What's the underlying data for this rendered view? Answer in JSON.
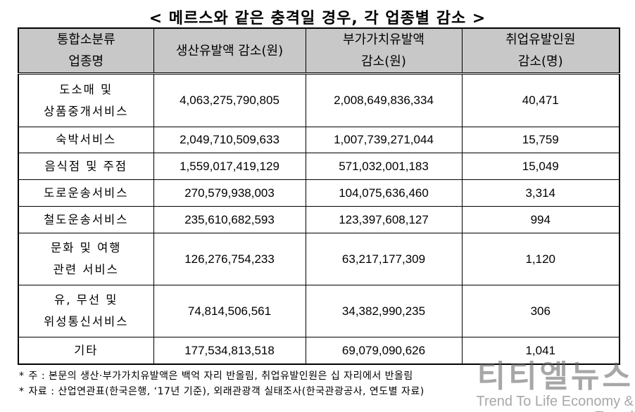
{
  "title": "< 메르스와 같은 충격일 경우, 각 업종별 감소 >",
  "table": {
    "headers": [
      [
        "통합소분류",
        "업종명"
      ],
      [
        "생산유발액 감소(원)"
      ],
      [
        "부가가치유발액",
        "감소(원)"
      ],
      [
        "취업유발인원",
        "감소(명)"
      ]
    ],
    "rows": [
      {
        "industry": [
          "도소매 및",
          "상품중개서비스"
        ],
        "production": "4,063,275,790,805",
        "value_added": "2,008,649,836,334",
        "employment": "40,471"
      },
      {
        "industry": [
          "숙박서비스"
        ],
        "production": "2,049,710,509,633",
        "value_added": "1,007,739,271,044",
        "employment": "15,759"
      },
      {
        "industry": [
          "음식점 및 주점"
        ],
        "production": "1,559,017,419,129",
        "value_added": "571,032,001,183",
        "employment": "15,049"
      },
      {
        "industry": [
          "도로운송서비스"
        ],
        "production": "270,579,938,003",
        "value_added": "104,075,636,460",
        "employment": "3,314"
      },
      {
        "industry": [
          "철도운송서비스"
        ],
        "production": "235,610,682,593",
        "value_added": "123,397,608,127",
        "employment": "994"
      },
      {
        "industry": [
          "문화 및 여행",
          "관련 서비스"
        ],
        "production": "126,276,754,233",
        "value_added": "63,217,177,309",
        "employment": "1,120"
      },
      {
        "industry": [
          "유, 무선 및",
          "위성통신서비스"
        ],
        "production": "74,814,506,561",
        "value_added": "34,382,990,235",
        "employment": "306"
      },
      {
        "industry": [
          "기타"
        ],
        "production": "177,534,813,518",
        "value_added": "69,079,090,626",
        "employment": "1,041"
      }
    ]
  },
  "notes": [
    {
      "mark": "*",
      "text": "주 : 본문의 생산·부가가치유발액은 백억 자리 반올림, 취업유발인원은 십 자리에서 반올림"
    },
    {
      "mark": "*",
      "text": "자료 : 산업연관표(한국은행, ‘17년 기준), 외래관광객 실태조사(한국관광공사, 연도별 자료)"
    }
  ],
  "watermark": {
    "logo": "티티엘뉴스",
    "slogan": "Trend To Life Economy & Travel"
  }
}
